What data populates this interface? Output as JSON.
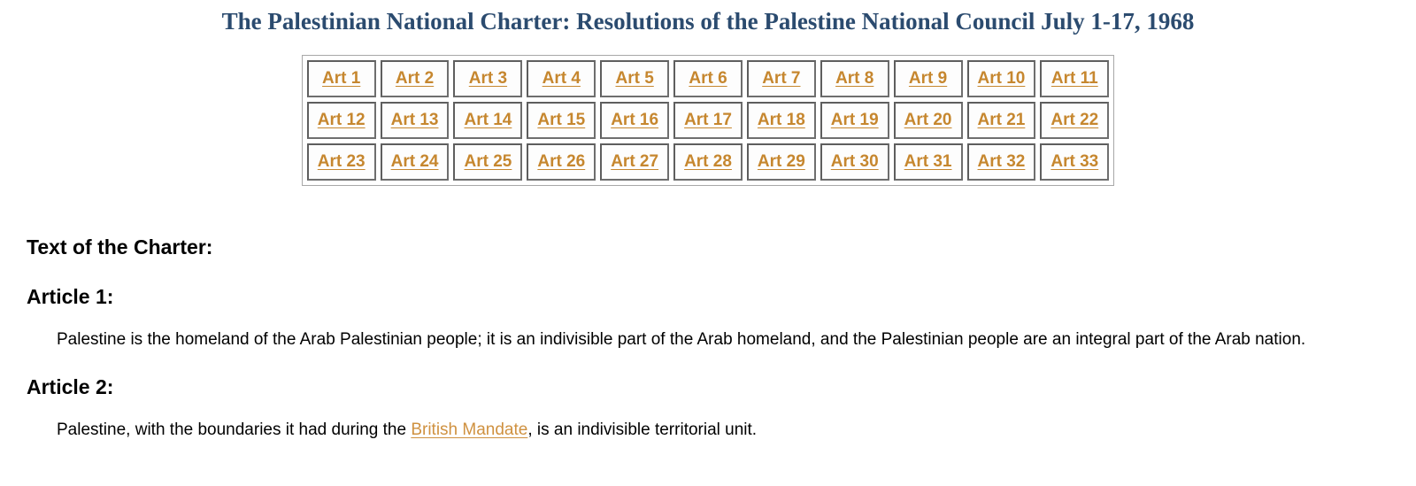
{
  "page": {
    "title": "The Palestinian National Charter: Resolutions of the Palestine National Council July 1-17, 1968"
  },
  "article_nav": {
    "rows": [
      [
        "Art 1",
        "Art 2",
        "Art 3",
        "Art 4",
        "Art 5",
        "Art 6",
        "Art 7",
        "Art 8",
        "Art 9",
        "Art 10",
        "Art 11"
      ],
      [
        "Art 12",
        "Art 13",
        "Art 14",
        "Art 15",
        "Art 16",
        "Art 17",
        "Art 18",
        "Art 19",
        "Art 20",
        "Art 21",
        "Art 22"
      ],
      [
        "Art 23",
        "Art 24",
        "Art 25",
        "Art 26",
        "Art 27",
        "Art 28",
        "Art 29",
        "Art 30",
        "Art 31",
        "Art 32",
        "Art 33"
      ]
    ]
  },
  "content": {
    "section_heading": "Text of the Charter:",
    "articles": [
      {
        "heading": "Article 1:",
        "text": "Palestine is the homeland of the Arab Palestinian people; it is an indivisible part of the Arab homeland, and the Palestinian people are an integral part of the Arab nation."
      },
      {
        "heading": "Article 2:",
        "text_before_link": "Palestine, with the boundaries it had during the ",
        "link_text": "British Mandate",
        "text_after_link": ", is an indivisible territorial unit."
      }
    ]
  },
  "colors": {
    "title_color": "#2b4b6f",
    "link_color": "#c6872f",
    "inline_link_color": "#cf9140",
    "cell_border_color": "#5e5e5e",
    "table_border_color": "#a8a8a8"
  }
}
